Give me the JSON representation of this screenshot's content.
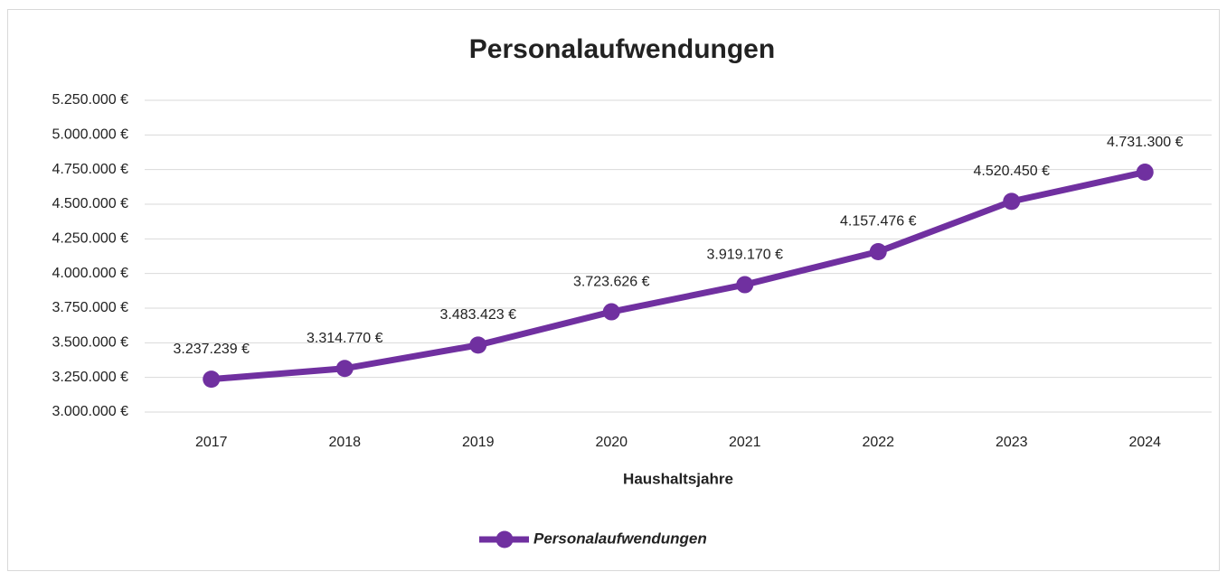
{
  "chart_data": {
    "type": "line",
    "title": "Personalaufwendungen",
    "x_label": "Haushaltsjahre",
    "categories": [
      "2017",
      "2018",
      "2019",
      "2020",
      "2021",
      "2022",
      "2023",
      "2024"
    ],
    "series": [
      {
        "name": "Personalaufwendungen",
        "color": "#7030a0",
        "values": [
          3237239,
          3314770,
          3483423,
          3723626,
          3919170,
          4157476,
          4520450,
          4731300
        ],
        "value_labels": [
          "3.237.239 €",
          "3.314.770 €",
          "3.483.423 €",
          "3.723.626 €",
          "3.919.170 €",
          "4.157.476 €",
          "4.520.450 €",
          "4.731.300 €"
        ]
      }
    ],
    "ylim": [
      3000000,
      5250000
    ],
    "yticks": [
      {
        "value": 3000000,
        "label": "3.000.000 €"
      },
      {
        "value": 3250000,
        "label": "3.250.000 €"
      },
      {
        "value": 3500000,
        "label": "3.500.000 €"
      },
      {
        "value": 3750000,
        "label": "3.750.000 €"
      },
      {
        "value": 4000000,
        "label": "4.000.000 €"
      },
      {
        "value": 4250000,
        "label": "4.250.000 €"
      },
      {
        "value": 4500000,
        "label": "4.500.000 €"
      },
      {
        "value": 4750000,
        "label": "4.750.000 €"
      },
      {
        "value": 5000000,
        "label": "5.000.000 €"
      },
      {
        "value": 5250000,
        "label": "5.250.000 €"
      }
    ],
    "grid": true,
    "legend": "bottom"
  }
}
